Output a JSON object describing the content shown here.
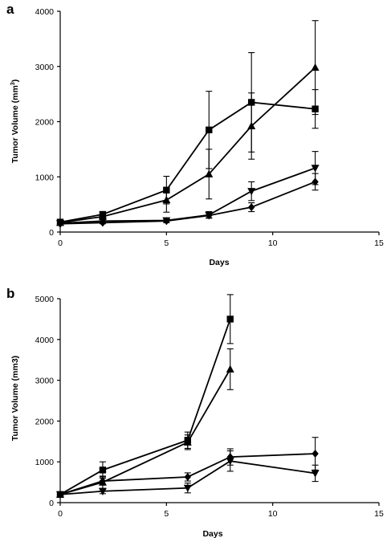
{
  "chart_data": [
    {
      "type": "line",
      "panel_label": "a",
      "xlabel": "Days",
      "ylabel": "Tumor Volume (mm",
      "ylabel_sup": "3",
      "ylabel_close": ")",
      "xlim": [
        0,
        15
      ],
      "ylim": [
        0,
        4000
      ],
      "xticks": [
        0,
        5,
        10,
        15
      ],
      "yticks": [
        0,
        1000,
        2000,
        3000,
        4000
      ],
      "grid": false,
      "series": [
        {
          "marker": "square",
          "x": [
            0,
            2,
            5,
            7,
            9,
            12
          ],
          "y": [
            180,
            320,
            760,
            1850,
            2350,
            2230
          ],
          "err": [
            40,
            50,
            250,
            700,
            900,
            350
          ]
        },
        {
          "marker": "triangle",
          "x": [
            0,
            2,
            5,
            7,
            9,
            12
          ],
          "y": [
            170,
            280,
            580,
            1050,
            1920,
            2980
          ],
          "err": [
            30,
            40,
            220,
            450,
            600,
            850
          ]
        },
        {
          "marker": "triangle-down",
          "x": [
            0,
            2,
            5,
            7,
            9,
            12
          ],
          "y": [
            160,
            200,
            210,
            310,
            740,
            1160
          ],
          "err": [
            20,
            30,
            40,
            60,
            170,
            300
          ]
        },
        {
          "marker": "diamond",
          "x": [
            0,
            2,
            5,
            7,
            9,
            12
          ],
          "y": [
            150,
            170,
            200,
            300,
            450,
            910
          ],
          "err": [
            20,
            20,
            30,
            40,
            80,
            150
          ]
        }
      ]
    },
    {
      "type": "line",
      "panel_label": "b",
      "xlabel": "Days",
      "ylabel": "Tumor Volume (mm3)",
      "ylabel_sup": "",
      "ylabel_close": "",
      "xlim": [
        0,
        15
      ],
      "ylim": [
        0,
        5000
      ],
      "xticks": [
        0,
        5,
        10,
        15
      ],
      "yticks": [
        0,
        1000,
        2000,
        3000,
        4000,
        5000
      ],
      "grid": false,
      "series": [
        {
          "marker": "square",
          "x": [
            0,
            2,
            6,
            8
          ],
          "y": [
            200,
            800,
            1530,
            4500
          ],
          "err": [
            50,
            200,
            200,
            600
          ]
        },
        {
          "marker": "triangle",
          "x": [
            0,
            2,
            6,
            8
          ],
          "y": [
            200,
            500,
            1480,
            3270
          ],
          "err": [
            50,
            150,
            180,
            500
          ]
        },
        {
          "marker": "diamond",
          "x": [
            0,
            2,
            6,
            8,
            12
          ],
          "y": [
            200,
            530,
            630,
            1120,
            1200
          ],
          "err": [
            40,
            100,
            100,
            200,
            400
          ]
        },
        {
          "marker": "triangle-down",
          "x": [
            0,
            2,
            6,
            8,
            12
          ],
          "y": [
            200,
            280,
            360,
            1020,
            720
          ],
          "err": [
            40,
            60,
            120,
            250,
            200
          ]
        }
      ]
    }
  ]
}
